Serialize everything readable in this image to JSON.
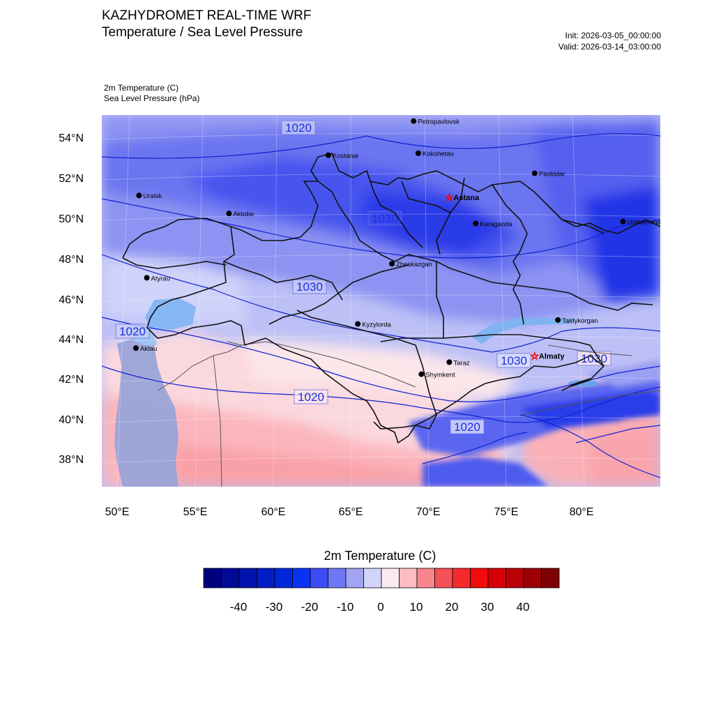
{
  "header": {
    "title_line1": "KAZHYDROMET REAL-TIME WRF",
    "title_line2": "Temperature / Sea Level Pressure",
    "init": "Init: 2026-03-05_00:00:00",
    "valid": "Valid: 2026-03-14_03:00:00"
  },
  "legend": {
    "field1": "2m Temperature   (C)",
    "field2": "Sea Level Pressure   (hPa)"
  },
  "axes": {
    "lat_labels": [
      "54°N",
      "52°N",
      "50°N",
      "48°N",
      "46°N",
      "44°N",
      "42°N",
      "40°N",
      "38°N"
    ],
    "lon_labels": [
      "50°E",
      "55°E",
      "60°E",
      "65°E",
      "70°E",
      "75°E",
      "80°E"
    ],
    "lat_range": [
      36.7,
      55.2
    ],
    "lon_range": [
      49,
      85
    ]
  },
  "isobar_labels": [
    "1020",
    "1030",
    "1030",
    "1020",
    "1030",
    "1030",
    "1020",
    "1020"
  ],
  "cities": [
    {
      "name": "Petropavlovsk",
      "lon": 69.1,
      "lat": 54.9,
      "capital": false
    },
    {
      "name": "Kostanai",
      "lon": 63.6,
      "lat": 53.2,
      "capital": false
    },
    {
      "name": "Kokshetau",
      "lon": 69.4,
      "lat": 53.3,
      "capital": false
    },
    {
      "name": "Pavlodar",
      "lon": 76.9,
      "lat": 52.3,
      "capital": false
    },
    {
      "name": "Uralsk",
      "lon": 51.4,
      "lat": 51.2,
      "capital": false
    },
    {
      "name": "Astana",
      "lon": 71.4,
      "lat": 51.1,
      "capital": true
    },
    {
      "name": "Aktobe",
      "lon": 57.2,
      "lat": 50.3,
      "capital": false
    },
    {
      "name": "Ustkamenogorsk",
      "lon": 82.6,
      "lat": 49.9,
      "capital": false
    },
    {
      "name": "Karaganda",
      "lon": 73.1,
      "lat": 49.8,
      "capital": false
    },
    {
      "name": "Atyrau",
      "lon": 51.9,
      "lat": 47.1,
      "capital": false
    },
    {
      "name": "Zheskazgan",
      "lon": 67.7,
      "lat": 47.8,
      "capital": false
    },
    {
      "name": "Taldykorgan",
      "lon": 78.4,
      "lat": 45.0,
      "capital": false
    },
    {
      "name": "Aktau",
      "lon": 51.2,
      "lat": 43.6,
      "capital": false
    },
    {
      "name": "Kyzylorda",
      "lon": 65.5,
      "lat": 44.8,
      "capital": false
    },
    {
      "name": "Almaty",
      "lon": 76.9,
      "lat": 43.2,
      "capital": true
    },
    {
      "name": "Taraz",
      "lon": 71.4,
      "lat": 42.9,
      "capital": false
    },
    {
      "name": "Shymkent",
      "lon": 69.6,
      "lat": 42.3,
      "capital": false
    }
  ],
  "colorbar": {
    "title": "2m Temperature  (C)",
    "colors": [
      "#00007f",
      "#000a96",
      "#0014ad",
      "#001ec4",
      "#0028db",
      "#0a32f2",
      "#3c4cf7",
      "#6e78f5",
      "#a0a4f2",
      "#d2d3f8",
      "#fbe9ee",
      "#fbbcc2",
      "#f8868c",
      "#f55056",
      "#f52a2d",
      "#f50a0a",
      "#d70008",
      "#b90007",
      "#9b0005",
      "#7d0003"
    ],
    "tick_labels": [
      "-40",
      "-30",
      "-20",
      "-10",
      "0",
      "10",
      "20",
      "30",
      "40"
    ]
  }
}
